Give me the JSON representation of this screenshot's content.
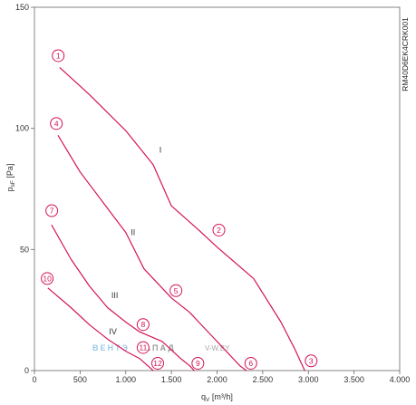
{
  "chart_data": {
    "type": "line",
    "title": "",
    "xlabel_main": "q",
    "xlabel_sub": "V",
    "xlabel_unit": " [m³/h]",
    "ylabel_main": "p",
    "ylabel_sub": "sF",
    "ylabel_unit": " [Pa]",
    "xlim": [
      0,
      4000
    ],
    "ylim": [
      0,
      150
    ],
    "x_ticks": [
      0,
      500,
      1000,
      1500,
      2000,
      2500,
      3000,
      3500,
      4000
    ],
    "x_tick_labels": [
      "0",
      "500",
      "1.000",
      "1.500",
      "2.000",
      "2.500",
      "3.000",
      "3.500",
      "4.000"
    ],
    "y_ticks": [
      0,
      50,
      100,
      150
    ],
    "y_tick_labels": [
      "0",
      "50",
      "100",
      "150"
    ],
    "grid": false,
    "line_color": "#d4145a",
    "series": [
      {
        "name": "I",
        "label_at": [
          1380,
          90
        ],
        "x": [
          280,
          600,
          1000,
          1300,
          1500,
          1800,
          2000,
          2400,
          2700,
          2850,
          2960
        ],
        "y": [
          125,
          114,
          99,
          85,
          68,
          58,
          51,
          38,
          20,
          9,
          0
        ]
      },
      {
        "name": "II",
        "label_at": [
          1080,
          56
        ],
        "x": [
          260,
          500,
          800,
          1000,
          1200,
          1500,
          1700,
          1850,
          2000,
          2150,
          2250,
          2320
        ],
        "y": [
          97,
          82,
          67,
          57,
          42,
          30,
          24,
          18,
          12,
          6,
          2,
          0
        ]
      },
      {
        "name": "III",
        "label_at": [
          880,
          30
        ],
        "x": [
          190,
          400,
          600,
          800,
          1000,
          1150,
          1400,
          1600,
          1700,
          1750
        ],
        "y": [
          60,
          46,
          35,
          26,
          20,
          16,
          12,
          5,
          2,
          0
        ]
      },
      {
        "name": "IV",
        "label_at": [
          860,
          15
        ],
        "x": [
          150,
          400,
          600,
          800,
          1000,
          1150,
          1270,
          1300
        ],
        "y": [
          34,
          26,
          19,
          13,
          8,
          5,
          1,
          0
        ]
      }
    ],
    "markers": [
      {
        "label": "1",
        "x": 260,
        "y": 130
      },
      {
        "label": "2",
        "x": 2020,
        "y": 58
      },
      {
        "label": "3",
        "x": 3030,
        "y": 4
      },
      {
        "label": "4",
        "x": 240,
        "y": 102
      },
      {
        "label": "5",
        "x": 1550,
        "y": 33
      },
      {
        "label": "6",
        "x": 2370,
        "y": 3
      },
      {
        "label": "7",
        "x": 190,
        "y": 66
      },
      {
        "label": "8",
        "x": 1190,
        "y": 19
      },
      {
        "label": "9",
        "x": 1790,
        "y": 3
      },
      {
        "label": "10",
        "x": 140,
        "y": 38
      },
      {
        "label": "11",
        "x": 1190,
        "y": 9.5
      },
      {
        "label": "12",
        "x": 1350,
        "y": 3
      }
    ],
    "side_code": "RM40D6EK4CRK001",
    "watermark": {
      "part1": "ВЕНТЭ",
      "part2": "ЗАПАД",
      "part3": "V-W.BY"
    }
  }
}
